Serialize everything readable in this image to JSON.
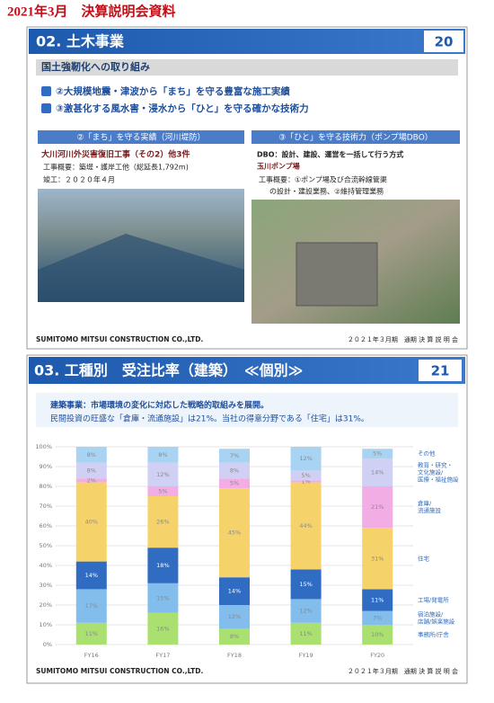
{
  "header": {
    "title": "2021年3月　決算説明会資料"
  },
  "slide1": {
    "title": "02. 土木事業",
    "page": "20",
    "subtitle": "国土強靭化への取り組み",
    "points": [
      "②大規模地震・津波から「まち」を守る豊富な施工実績",
      "③激甚化する風水害・浸水から「ひと」を守る確かな技術力"
    ],
    "left": {
      "heading": "②「まち」を守る実績（河川堤防）",
      "project": "大川河川外災害復旧工事（その2）他3件",
      "lines": [
        "工事概要：築堤・護岸工他（総延長1,792m)",
        "竣工：２０２０年４月"
      ]
    },
    "right": {
      "heading": "③「ひと」を守る技術力（ポンプ場DBO）",
      "dbo": "DBO：設計、建設、運営を一括して行う方式",
      "project": "玉川ポンプ場",
      "lines": [
        "工事概要：①ポンプ場及び合流幹線管渠",
        "の設計・建設業務、②維持管理業務"
      ]
    },
    "footer": {
      "company": "SUMITOMO MITSUI CONSTRUCTION CO.,LTD.",
      "event": "２０２１年３月期　通期 決 算 説 明 会"
    }
  },
  "slide2": {
    "title": "03. 工種別　受注比率（建築）　≪個別≫",
    "page": "21",
    "lines": [
      "建築事業：市場環境の変化に対応した戦略的取組みを展開。",
      "民間投資の旺盛な「倉庫・流通施設」は21%。当社の得意分野である「住宅」は31%。"
    ],
    "footer": {
      "company": "SUMITOMO MITSUI CONSTRUCTION CO.,LTD.",
      "event": "２０２１年３月期　通期 決 算 説 明 会"
    }
  },
  "chart_data": {
    "type": "stacked_bar",
    "categories": [
      "FY16",
      "FY17",
      "FY18",
      "FY19",
      "FY20"
    ],
    "ylim": [
      0,
      100
    ],
    "yticks": [
      {
        "value": 0,
        "label": "0%"
      },
      {
        "value": 10,
        "label": "10%"
      },
      {
        "value": 20,
        "label": "20%"
      },
      {
        "value": 30,
        "label": "30%"
      },
      {
        "value": 40,
        "label": "40%"
      },
      {
        "value": 50,
        "label": "50%"
      },
      {
        "value": 60,
        "label": "60%"
      },
      {
        "value": 70,
        "label": "70%"
      },
      {
        "value": 80,
        "label": "80%"
      },
      {
        "value": 90,
        "label": "90%"
      },
      {
        "value": 100,
        "label": "100%"
      }
    ],
    "grid": true,
    "series": [
      {
        "name": "事務所/庁舎",
        "color": "#a9e070",
        "values": [
          11,
          16,
          8,
          11,
          10
        ],
        "value_labels": [
          "11%",
          "16%",
          "8%",
          "11%",
          "10%"
        ]
      },
      {
        "name": "宿泊施設/\n店舗/娯楽施設",
        "color": "#82bdec",
        "values": [
          17,
          15,
          12,
          12,
          7
        ],
        "value_labels": [
          "17%",
          "15%",
          "12%",
          "12%",
          "7%"
        ]
      },
      {
        "name": "工場/発電所",
        "color": "#2f6cc2",
        "values": [
          14,
          18,
          14,
          15,
          11
        ],
        "value_labels": [
          "14%",
          "18%",
          "14%",
          "15%",
          "11%"
        ]
      },
      {
        "name": "住宅",
        "color": "#f6d36a",
        "values": [
          40,
          26,
          45,
          44,
          31
        ],
        "value_labels": [
          "40%",
          "26%",
          "45%",
          "44%",
          "31%"
        ]
      },
      {
        "name": "倉庫/\n流通施設",
        "color": "#f2aee4",
        "values": [
          2,
          5,
          5,
          1,
          21
        ],
        "value_labels": [
          "2%",
          "5%",
          "5%",
          "1%",
          "21%"
        ]
      },
      {
        "name": "教育・研究・\n文化施設/\n医療・福祉施設",
        "color": "#cfd0f3",
        "values": [
          8,
          12,
          8,
          5,
          14
        ],
        "value_labels": [
          "8%",
          "12%",
          "8%",
          "5%",
          "14%"
        ]
      },
      {
        "name": "その他",
        "color": "#a9d3f2",
        "values": [
          8,
          8,
          7,
          12,
          5
        ],
        "value_labels": [
          "8%",
          "8%",
          "7%",
          "12%",
          "5%"
        ]
      }
    ]
  }
}
